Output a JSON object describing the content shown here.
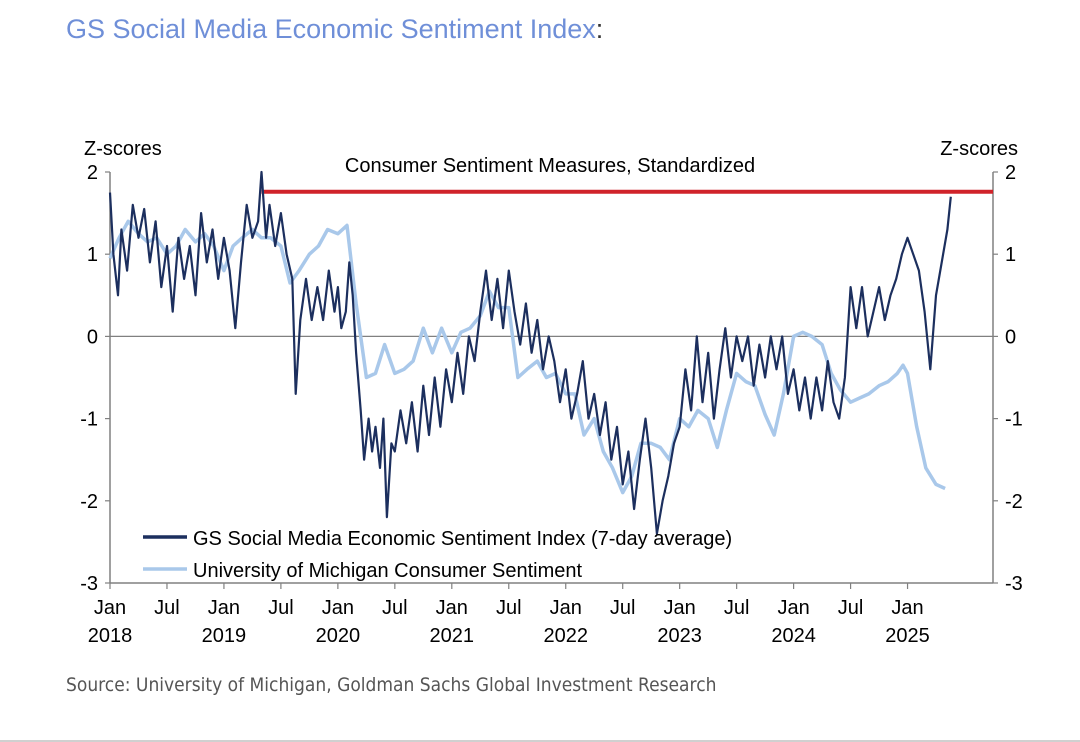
{
  "header": {
    "title": "GS Social Media Economic Sentiment Index",
    "title_suffix": ":"
  },
  "footer": {
    "source": "Source: University of Michigan, Goldman Sachs Global Investment Research"
  },
  "colors": {
    "title": "#6f8fd8",
    "gs_series": "#1c2f5e",
    "umich_series": "#a9c8ea",
    "threshold": "#d0232a",
    "zero_line": "#808080"
  },
  "chart_data": {
    "type": "line",
    "title": "Consumer Sentiment Measures, Standardized",
    "ylabel_left": "Z-scores",
    "ylabel_right": "Z-scores",
    "ylim": [
      -3,
      2
    ],
    "yticks": [
      -3,
      -2,
      -1,
      0,
      1,
      2
    ],
    "xlim": [
      2018.0,
      2025.75
    ],
    "xticks": [
      {
        "x": 2018.0,
        "label": "Jan",
        "year": "2018"
      },
      {
        "x": 2018.5,
        "label": "Jul",
        "year": ""
      },
      {
        "x": 2019.0,
        "label": "Jan",
        "year": "2019"
      },
      {
        "x": 2019.5,
        "label": "Jul",
        "year": ""
      },
      {
        "x": 2020.0,
        "label": "Jan",
        "year": "2020"
      },
      {
        "x": 2020.5,
        "label": "Jul",
        "year": ""
      },
      {
        "x": 2021.0,
        "label": "Jan",
        "year": "2021"
      },
      {
        "x": 2021.5,
        "label": "Jul",
        "year": ""
      },
      {
        "x": 2022.0,
        "label": "Jan",
        "year": "2022"
      },
      {
        "x": 2022.5,
        "label": "Jul",
        "year": ""
      },
      {
        "x": 2023.0,
        "label": "Jan",
        "year": "2023"
      },
      {
        "x": 2023.5,
        "label": "Jul",
        "year": ""
      },
      {
        "x": 2024.0,
        "label": "Jan",
        "year": "2024"
      },
      {
        "x": 2024.5,
        "label": "Jul",
        "year": ""
      },
      {
        "x": 2025.0,
        "label": "Jan",
        "year": "2025"
      }
    ],
    "reference_line": {
      "y": 1.76,
      "x_start": 2019.33,
      "x_end": 2025.75
    },
    "legend": [
      "GS Social Media Economic Sentiment Index (7-day average)",
      "University of Michigan Consumer Sentiment"
    ],
    "series": [
      {
        "name": "GS Social Media Economic Sentiment Index (7-day average)",
        "points": [
          [
            2018.0,
            1.75
          ],
          [
            2018.03,
            1.0
          ],
          [
            2018.07,
            0.5
          ],
          [
            2018.1,
            1.3
          ],
          [
            2018.15,
            0.8
          ],
          [
            2018.2,
            1.6
          ],
          [
            2018.25,
            1.2
          ],
          [
            2018.3,
            1.55
          ],
          [
            2018.35,
            0.9
          ],
          [
            2018.4,
            1.4
          ],
          [
            2018.45,
            0.6
          ],
          [
            2018.5,
            1.1
          ],
          [
            2018.55,
            0.3
          ],
          [
            2018.6,
            1.2
          ],
          [
            2018.65,
            0.7
          ],
          [
            2018.7,
            1.1
          ],
          [
            2018.75,
            0.5
          ],
          [
            2018.8,
            1.5
          ],
          [
            2018.85,
            0.9
          ],
          [
            2018.9,
            1.3
          ],
          [
            2018.95,
            0.7
          ],
          [
            2019.0,
            1.2
          ],
          [
            2019.05,
            0.8
          ],
          [
            2019.1,
            0.1
          ],
          [
            2019.15,
            0.9
          ],
          [
            2019.2,
            1.6
          ],
          [
            2019.25,
            1.2
          ],
          [
            2019.3,
            1.4
          ],
          [
            2019.33,
            2.0
          ],
          [
            2019.37,
            1.2
          ],
          [
            2019.4,
            1.6
          ],
          [
            2019.45,
            1.1
          ],
          [
            2019.5,
            1.5
          ],
          [
            2019.55,
            1.0
          ],
          [
            2019.6,
            0.7
          ],
          [
            2019.63,
            -0.7
          ],
          [
            2019.67,
            0.2
          ],
          [
            2019.72,
            0.7
          ],
          [
            2019.77,
            0.2
          ],
          [
            2019.82,
            0.6
          ],
          [
            2019.87,
            0.2
          ],
          [
            2019.92,
            0.8
          ],
          [
            2019.97,
            0.3
          ],
          [
            2020.0,
            0.6
          ],
          [
            2020.03,
            0.1
          ],
          [
            2020.07,
            0.3
          ],
          [
            2020.1,
            0.9
          ],
          [
            2020.13,
            0.5
          ],
          [
            2020.16,
            -0.2
          ],
          [
            2020.2,
            -0.9
          ],
          [
            2020.23,
            -1.5
          ],
          [
            2020.27,
            -1.0
          ],
          [
            2020.3,
            -1.4
          ],
          [
            2020.33,
            -1.1
          ],
          [
            2020.37,
            -1.6
          ],
          [
            2020.4,
            -1.0
          ],
          [
            2020.43,
            -2.2
          ],
          [
            2020.47,
            -1.3
          ],
          [
            2020.5,
            -1.4
          ],
          [
            2020.55,
            -0.9
          ],
          [
            2020.6,
            -1.3
          ],
          [
            2020.65,
            -0.8
          ],
          [
            2020.7,
            -1.4
          ],
          [
            2020.75,
            -0.6
          ],
          [
            2020.8,
            -1.2
          ],
          [
            2020.85,
            -0.5
          ],
          [
            2020.9,
            -1.1
          ],
          [
            2020.95,
            -0.4
          ],
          [
            2021.0,
            -0.8
          ],
          [
            2021.05,
            -0.2
          ],
          [
            2021.1,
            -0.7
          ],
          [
            2021.15,
            0.0
          ],
          [
            2021.2,
            -0.3
          ],
          [
            2021.25,
            0.3
          ],
          [
            2021.3,
            0.8
          ],
          [
            2021.35,
            0.2
          ],
          [
            2021.4,
            0.7
          ],
          [
            2021.45,
            0.1
          ],
          [
            2021.5,
            0.8
          ],
          [
            2021.55,
            0.3
          ],
          [
            2021.6,
            -0.1
          ],
          [
            2021.65,
            0.4
          ],
          [
            2021.7,
            -0.2
          ],
          [
            2021.75,
            0.2
          ],
          [
            2021.8,
            -0.4
          ],
          [
            2021.85,
            0.0
          ],
          [
            2021.9,
            -0.3
          ],
          [
            2021.95,
            -0.8
          ],
          [
            2022.0,
            -0.4
          ],
          [
            2022.05,
            -1.0
          ],
          [
            2022.1,
            -0.7
          ],
          [
            2022.15,
            -0.3
          ],
          [
            2022.2,
            -1.0
          ],
          [
            2022.25,
            -0.7
          ],
          [
            2022.3,
            -1.2
          ],
          [
            2022.35,
            -0.8
          ],
          [
            2022.4,
            -1.5
          ],
          [
            2022.45,
            -1.1
          ],
          [
            2022.5,
            -1.8
          ],
          [
            2022.55,
            -1.4
          ],
          [
            2022.6,
            -2.1
          ],
          [
            2022.65,
            -1.5
          ],
          [
            2022.7,
            -1.0
          ],
          [
            2022.75,
            -1.6
          ],
          [
            2022.8,
            -2.4
          ],
          [
            2022.85,
            -2.0
          ],
          [
            2022.9,
            -1.7
          ],
          [
            2022.95,
            -1.3
          ],
          [
            2023.0,
            -1.1
          ],
          [
            2023.05,
            -0.4
          ],
          [
            2023.1,
            -0.9
          ],
          [
            2023.15,
            0.0
          ],
          [
            2023.2,
            -0.8
          ],
          [
            2023.25,
            -0.2
          ],
          [
            2023.3,
            -1.0
          ],
          [
            2023.35,
            -0.4
          ],
          [
            2023.4,
            0.1
          ],
          [
            2023.45,
            -0.5
          ],
          [
            2023.5,
            0.0
          ],
          [
            2023.55,
            -0.3
          ],
          [
            2023.6,
            0.0
          ],
          [
            2023.65,
            -0.6
          ],
          [
            2023.7,
            -0.1
          ],
          [
            2023.75,
            -0.5
          ],
          [
            2023.8,
            0.0
          ],
          [
            2023.85,
            -0.4
          ],
          [
            2023.9,
            0.0
          ],
          [
            2023.95,
            -0.7
          ],
          [
            2024.0,
            -0.4
          ],
          [
            2024.05,
            -0.9
          ],
          [
            2024.1,
            -0.5
          ],
          [
            2024.15,
            -1.0
          ],
          [
            2024.2,
            -0.5
          ],
          [
            2024.25,
            -0.9
          ],
          [
            2024.3,
            -0.3
          ],
          [
            2024.35,
            -0.8
          ],
          [
            2024.4,
            -1.0
          ],
          [
            2024.45,
            -0.5
          ],
          [
            2024.5,
            0.6
          ],
          [
            2024.55,
            0.1
          ],
          [
            2024.6,
            0.6
          ],
          [
            2024.65,
            0.0
          ],
          [
            2024.7,
            0.3
          ],
          [
            2024.75,
            0.6
          ],
          [
            2024.8,
            0.2
          ],
          [
            2024.85,
            0.5
          ],
          [
            2024.9,
            0.7
          ],
          [
            2024.95,
            1.0
          ],
          [
            2025.0,
            1.2
          ],
          [
            2025.05,
            1.0
          ],
          [
            2025.1,
            0.8
          ],
          [
            2025.15,
            0.3
          ],
          [
            2025.2,
            -0.4
          ],
          [
            2025.25,
            0.5
          ],
          [
            2025.3,
            0.9
          ],
          [
            2025.35,
            1.3
          ],
          [
            2025.38,
            1.7
          ]
        ]
      },
      {
        "name": "University of Michigan Consumer Sentiment",
        "points": [
          [
            2018.0,
            0.95
          ],
          [
            2018.08,
            1.2
          ],
          [
            2018.16,
            1.4
          ],
          [
            2018.25,
            1.25
          ],
          [
            2018.33,
            1.15
          ],
          [
            2018.41,
            1.2
          ],
          [
            2018.5,
            1.0
          ],
          [
            2018.58,
            1.1
          ],
          [
            2018.66,
            1.3
          ],
          [
            2018.75,
            1.15
          ],
          [
            2018.83,
            1.25
          ],
          [
            2018.91,
            1.1
          ],
          [
            2019.0,
            0.8
          ],
          [
            2019.08,
            1.1
          ],
          [
            2019.16,
            1.2
          ],
          [
            2019.25,
            1.3
          ],
          [
            2019.33,
            1.2
          ],
          [
            2019.41,
            1.2
          ],
          [
            2019.5,
            1.1
          ],
          [
            2019.58,
            0.65
          ],
          [
            2019.66,
            0.8
          ],
          [
            2019.75,
            1.0
          ],
          [
            2019.83,
            1.1
          ],
          [
            2019.91,
            1.3
          ],
          [
            2020.0,
            1.25
          ],
          [
            2020.08,
            1.35
          ],
          [
            2020.16,
            0.4
          ],
          [
            2020.25,
            -0.5
          ],
          [
            2020.33,
            -0.45
          ],
          [
            2020.41,
            -0.1
          ],
          [
            2020.5,
            -0.45
          ],
          [
            2020.58,
            -0.4
          ],
          [
            2020.66,
            -0.3
          ],
          [
            2020.75,
            0.1
          ],
          [
            2020.83,
            -0.2
          ],
          [
            2020.91,
            0.1
          ],
          [
            2021.0,
            -0.2
          ],
          [
            2021.08,
            0.05
          ],
          [
            2021.16,
            0.1
          ],
          [
            2021.25,
            0.25
          ],
          [
            2021.33,
            0.55
          ],
          [
            2021.41,
            0.35
          ],
          [
            2021.5,
            0.35
          ],
          [
            2021.58,
            -0.5
          ],
          [
            2021.66,
            -0.4
          ],
          [
            2021.75,
            -0.3
          ],
          [
            2021.83,
            -0.5
          ],
          [
            2021.91,
            -0.45
          ],
          [
            2022.0,
            -0.7
          ],
          [
            2022.08,
            -0.7
          ],
          [
            2022.16,
            -1.2
          ],
          [
            2022.25,
            -1.0
          ],
          [
            2022.33,
            -1.4
          ],
          [
            2022.41,
            -1.6
          ],
          [
            2022.5,
            -1.9
          ],
          [
            2022.58,
            -1.7
          ],
          [
            2022.66,
            -1.3
          ],
          [
            2022.75,
            -1.3
          ],
          [
            2022.83,
            -1.35
          ],
          [
            2022.91,
            -1.5
          ],
          [
            2023.0,
            -1.0
          ],
          [
            2023.08,
            -1.1
          ],
          [
            2023.16,
            -0.9
          ],
          [
            2023.25,
            -1.0
          ],
          [
            2023.33,
            -1.35
          ],
          [
            2023.41,
            -0.9
          ],
          [
            2023.5,
            -0.45
          ],
          [
            2023.58,
            -0.55
          ],
          [
            2023.66,
            -0.6
          ],
          [
            2023.75,
            -0.95
          ],
          [
            2023.83,
            -1.2
          ],
          [
            2023.91,
            -0.7
          ],
          [
            2024.0,
            0.0
          ],
          [
            2024.08,
            0.05
          ],
          [
            2024.16,
            0.0
          ],
          [
            2024.25,
            -0.1
          ],
          [
            2024.33,
            -0.45
          ],
          [
            2024.41,
            -0.65
          ],
          [
            2024.5,
            -0.8
          ],
          [
            2024.58,
            -0.75
          ],
          [
            2024.66,
            -0.7
          ],
          [
            2024.75,
            -0.6
          ],
          [
            2024.83,
            -0.55
          ],
          [
            2024.91,
            -0.45
          ],
          [
            2024.96,
            -0.35
          ],
          [
            2025.0,
            -0.45
          ],
          [
            2025.08,
            -1.1
          ],
          [
            2025.16,
            -1.6
          ],
          [
            2025.25,
            -1.8
          ],
          [
            2025.33,
            -1.85
          ]
        ]
      }
    ]
  }
}
